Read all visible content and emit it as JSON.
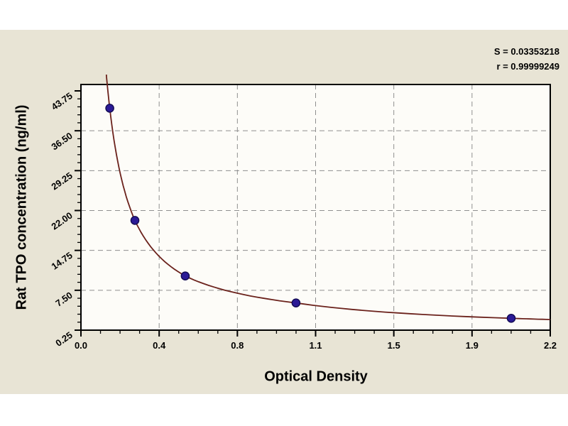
{
  "stats": {
    "std_error_label": "S = 0.03353218",
    "correlation_label": "r = 0.99999249"
  },
  "chart_data": {
    "type": "scatter",
    "title": "",
    "xlabel": "Optical Density",
    "ylabel": "Rat TPO concentration (ng/ml)",
    "xlim": [
      0.0,
      2.2
    ],
    "ylim": [
      0.25,
      43.75
    ],
    "x_tick_labels": [
      "0.0",
      "0.4",
      "0.8",
      "1.1",
      "1.5",
      "1.9",
      "2.2"
    ],
    "y_tick_labels": [
      "0.25",
      "7.50",
      "14.75",
      "22.00",
      "29.25",
      "36.50",
      "43.75"
    ],
    "x_minor_subdivisions": 4,
    "y_minor_subdivisions": 5,
    "grid": "dashed gray at major ticks",
    "legend": "none",
    "points": {
      "x": [
        0.135,
        0.253,
        0.489,
        1.008,
        2.017
      ],
      "y": [
        40.6,
        20.2,
        10.1,
        5.2,
        2.4
      ]
    },
    "fit": {
      "model": "power-law standard curve (decreasing hyperbolic)",
      "x_start": 0.119,
      "annotations": [
        "S = 0.03353218",
        "r = 0.99999249"
      ]
    },
    "colors": {
      "panel": "#E8E4D5",
      "plot_bg": "#FDFCF8",
      "curve": "#6B221C",
      "marker": "#2B1A96",
      "marker_edge": "#120A52",
      "grid": "#8F8F8F",
      "frame": "#000000",
      "text": "#000000"
    }
  }
}
